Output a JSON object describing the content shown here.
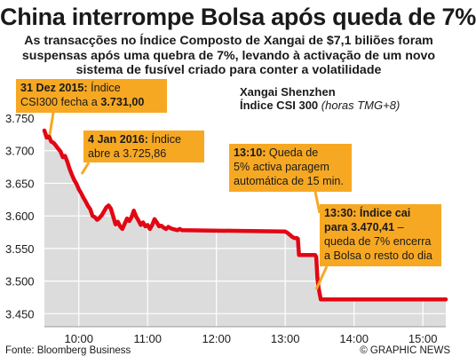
{
  "headline": "China interrompe Bolsa após queda de 7%",
  "standfirst": [
    "As transacções no Índice Composto de Xangai de $7,1 biliões foram",
    "suspensas após uma quebra de 7%, levando à activação de um novo",
    "sistema de fusível criado para conter a volatilidade"
  ],
  "series_title": {
    "line1": "Xangai Shenzhen",
    "line2_bold": "Índice CSI 300",
    "line2_unit": "(horas TMG+8)"
  },
  "callouts": {
    "dec31": {
      "bold": "31 Dez 2015:",
      "text1": " Índice",
      "text2": "CSI300 fecha a ",
      "value": "3.731,00"
    },
    "jan4": {
      "bold": "4 Jan 2016:",
      "text1": " Índice",
      "text2": "abre a 3.725,86"
    },
    "t1310": {
      "bold": "13:10:",
      "text1": " Queda de",
      "text2": "5% activa paragem",
      "text3": "automática de 15 min."
    },
    "t1330": {
      "bold1": "13:30: Índice cai",
      "bold2": "para 3.470,41",
      "text2": " –",
      "text3": "queda de 7% encerra",
      "text4": "a Bolsa o resto do dia"
    }
  },
  "footer": {
    "source": "Fonte: Bloomberg Business",
    "credit": "© GRAPHIC NEWS"
  },
  "colors": {
    "line": "#e30613",
    "area": "#dcdcdc",
    "grid": "#ffffff",
    "callout": "#f7a823",
    "text": "#1a1a1a"
  },
  "chart_data": {
    "type": "line",
    "title": "Xangai Shenzhen Índice CSI 300",
    "xlabel": "(horas TMG+8)",
    "ylabel": "",
    "x_ticks": [
      "10:00",
      "11:00",
      "12:00",
      "13:00",
      "14:00",
      "15:00"
    ],
    "x_tick_values": [
      600,
      660,
      720,
      780,
      840,
      900
    ],
    "y_ticks": [
      "3.450",
      "3.500",
      "3.550",
      "3.600",
      "3.650",
      "3.700",
      "3.750"
    ],
    "y_tick_values": [
      3450,
      3500,
      3550,
      3600,
      3650,
      3700,
      3750
    ],
    "xlim": [
      570,
      920
    ],
    "ylim": [
      3430,
      3765
    ],
    "grid": true,
    "x_minutes_since_midnight": true,
    "series": [
      {
        "values": [
          [
            570,
            3731
          ],
          [
            572,
            3720
          ],
          [
            574,
            3722
          ],
          [
            576,
            3714
          ],
          [
            578,
            3712
          ],
          [
            580,
            3708
          ],
          [
            582,
            3703
          ],
          [
            584,
            3699
          ],
          [
            586,
            3690
          ],
          [
            588,
            3692
          ],
          [
            590,
            3683
          ],
          [
            592,
            3672
          ],
          [
            594,
            3663
          ],
          [
            596,
            3655
          ],
          [
            598,
            3649
          ],
          [
            600,
            3641
          ],
          [
            602,
            3635
          ],
          [
            604,
            3628
          ],
          [
            606,
            3622
          ],
          [
            608,
            3615
          ],
          [
            610,
            3610
          ],
          [
            612,
            3600
          ],
          [
            614,
            3598
          ],
          [
            616,
            3594
          ],
          [
            618,
            3597
          ],
          [
            620,
            3601
          ],
          [
            622,
            3607
          ],
          [
            624,
            3613
          ],
          [
            626,
            3616
          ],
          [
            628,
            3611
          ],
          [
            630,
            3599
          ],
          [
            632,
            3587
          ],
          [
            634,
            3591
          ],
          [
            636,
            3584
          ],
          [
            638,
            3580
          ],
          [
            640,
            3588
          ],
          [
            642,
            3596
          ],
          [
            644,
            3592
          ],
          [
            646,
            3598
          ],
          [
            648,
            3608
          ],
          [
            650,
            3599
          ],
          [
            652,
            3593
          ],
          [
            654,
            3586
          ],
          [
            656,
            3590
          ],
          [
            658,
            3584
          ],
          [
            660,
            3586
          ],
          [
            662,
            3580
          ],
          [
            664,
            3586
          ],
          [
            666,
            3595
          ],
          [
            668,
            3590
          ],
          [
            670,
            3584
          ],
          [
            672,
            3585
          ],
          [
            674,
            3582
          ],
          [
            676,
            3580
          ],
          [
            678,
            3583
          ],
          [
            680,
            3581
          ],
          [
            682,
            3580
          ],
          [
            684,
            3579
          ],
          [
            686,
            3578
          ],
          [
            688,
            3580
          ],
          [
            690,
            3578
          ],
          [
            780,
            3576
          ],
          [
            782,
            3574
          ],
          [
            784,
            3571
          ],
          [
            786,
            3568
          ],
          [
            788,
            3566
          ],
          [
            790,
            3566
          ],
          [
            791,
            3565
          ],
          [
            792,
            3540
          ],
          [
            798,
            3540
          ],
          [
            806,
            3540
          ],
          [
            807,
            3537
          ],
          [
            808,
            3505
          ],
          [
            809,
            3490
          ],
          [
            810,
            3481
          ],
          [
            811,
            3472
          ],
          [
            812,
            3472
          ],
          [
            820,
            3472
          ],
          [
            840,
            3472
          ],
          [
            860,
            3472
          ],
          [
            880,
            3472
          ],
          [
            900,
            3472
          ],
          [
            920,
            3472
          ]
        ]
      }
    ]
  }
}
